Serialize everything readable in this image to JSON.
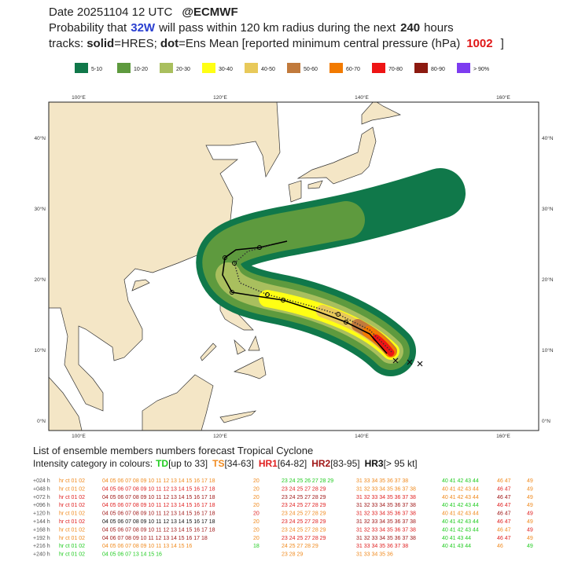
{
  "header": {
    "date": "Date 20251104 12 UTC",
    "source": "@ECMWF",
    "line2": [
      "Probability that",
      "32W",
      "will pass within 120 km radius during the next",
      "240",
      "hours"
    ],
    "line3": [
      "tracks:",
      "solid",
      "=HRES;",
      "dot",
      "=Ens Mean [reported minimum central pressure (hPa)",
      "1002",
      "]"
    ]
  },
  "legend": [
    {
      "label": "5-10",
      "color": "#10784a"
    },
    {
      "label": "10-20",
      "color": "#5e9a3e"
    },
    {
      "label": "20-30",
      "color": "#a9bf5e"
    },
    {
      "label": "30-40",
      "color": "#ffff14"
    },
    {
      "label": "40-50",
      "color": "#e8c95a"
    },
    {
      "label": "50-60",
      "color": "#c17a3c"
    },
    {
      "label": "60-70",
      "color": "#f27a00"
    },
    {
      "label": "70-80",
      "color": "#ee1414"
    },
    {
      "label": "80-90",
      "color": "#8c1a10"
    },
    {
      "label": "> 90%",
      "color": "#7d3cf0"
    }
  ],
  "map": {
    "lon_labels": [
      "100°E",
      "120°E",
      "140°E",
      "160°E"
    ],
    "lat_labels": [
      "40°N",
      "30°N",
      "20°N",
      "10°N",
      "0°N"
    ]
  },
  "footer": {
    "list_title": "List of ensemble members numbers forecast Tropical Cyclone",
    "intensity_label": "Intensity category in colours:",
    "categories": [
      {
        "name": "TD",
        "range": "[up to 33]",
        "color": "#22cc22"
      },
      {
        "name": "TS",
        "range": "[34-63]",
        "color": "#f08a1e"
      },
      {
        "name": "HR1",
        "range": "[64-82]",
        "color": "#e02020"
      },
      {
        "name": "HR2",
        "range": "[83-95]",
        "color": "#a01818"
      },
      {
        "name": "HR3",
        "range": "[> 95 kt]",
        "color": "#111111"
      }
    ]
  },
  "table": {
    "rows": [
      {
        "label": "+024 h",
        "cells": [
          "hr ct 01 02",
          "04 05 06 07 08 09 10 11 12 13 14 15 16 17 18",
          "20",
          "23 24 25 26 27 28 29",
          "31 33 34 35 36 37 38",
          "40 41 42 43 44",
          "46 47",
          "49"
        ],
        "colors": [
          "#f08a1e",
          "#f08a1e",
          "#f08a1e",
          "#22cc22",
          "#f08a1e",
          "#22cc22",
          "#f08a1e",
          "#f08a1e"
        ]
      },
      {
        "label": "+048 h",
        "cells": [
          "hr ct 01 02",
          "04 05 06 07 08 09 10 11 12 13 14 15 16 17 18",
          "20",
          "23 24 25 27 28 29",
          "31 32 33 34 35 36 37 38",
          "40 41 42 43 44",
          "46 47",
          "49"
        ],
        "colors": [
          "#f08a1e",
          "#e02020",
          "#f08a1e",
          "#e02020",
          "#f08a1e",
          "#f08a1e",
          "#e02020",
          "#f08a1e"
        ]
      },
      {
        "label": "+072 h",
        "cells": [
          "hr ct 01 02",
          "04 05 06 07 08 09 10 11 12 13 14 15 16 17 18",
          "20",
          "23 24 25 27 28 29",
          "31 32 33 34 35 36 37 38",
          "40 41 42 43 44",
          "46 47",
          "49"
        ],
        "colors": [
          "#e02020",
          "#a01818",
          "#f08a1e",
          "#a01818",
          "#e02020",
          "#f08a1e",
          "#a01818",
          "#f08a1e"
        ]
      },
      {
        "label": "+096 h",
        "cells": [
          "hr ct 01 02",
          "04 05 06 07 08 09 10 11 12 13 14 15 16 17 18",
          "20",
          "23 24 25 27 28 29",
          "31 32 33 34 35 36 37 38",
          "40 41 42 43 44",
          "46 47",
          "49"
        ],
        "colors": [
          "#e02020",
          "#e02020",
          "#f08a1e",
          "#e02020",
          "#a01818",
          "#22cc22",
          "#e02020",
          "#f08a1e"
        ]
      },
      {
        "label": "+120 h",
        "cells": [
          "hr ct 01 02",
          "04 05 06 07 08 09 10 11 12 13 14 15 16 17 18",
          "20",
          "23 24 25 27 28 29",
          "31 32 33 34 35 36 37 38",
          "40 41 42 43 44",
          "46 47",
          "49"
        ],
        "colors": [
          "#f08a1e",
          "#a01818",
          "#e02020",
          "#f08a1e",
          "#e02020",
          "#f08a1e",
          "#a01818",
          "#e02020"
        ]
      },
      {
        "label": "+144 h",
        "cells": [
          "hr ct 01 02",
          "04 05 06 07 08 09 10 11 12 13 14 15 16 17 18",
          "20",
          "23 24 25 27 28 29",
          "31 32 33 34 35 36 37 38",
          "40 41 42 43 44",
          "46 47",
          "49"
        ],
        "colors": [
          "#e02020",
          "#111111",
          "#f08a1e",
          "#e02020",
          "#a01818",
          "#22cc22",
          "#e02020",
          "#f08a1e"
        ]
      },
      {
        "label": "+168 h",
        "cells": [
          "hr ct 01 02",
          "04 05 06 07 08 09 10 11 12 13 14 15 16 17 18",
          "20",
          "23 24 25 27 28 29",
          "31 32 33 34 35 36 37 38",
          "40 41 42 43 44",
          "46 47",
          "49"
        ],
        "colors": [
          "#f08a1e",
          "#a01818",
          "#f08a1e",
          "#f08a1e",
          "#e02020",
          "#22cc22",
          "#f08a1e",
          "#e02020"
        ]
      },
      {
        "label": "+192 h",
        "cells": [
          "hr ct 01 02",
          "04 06 07 08 09 10 11 12 13 14 15 16 17 18",
          "20",
          "23 24 25 27 28 29",
          "31 32 33 34 35 36 37 38",
          "40 41 43 44",
          "46 47",
          "49"
        ],
        "colors": [
          "#f08a1e",
          "#a01818",
          "#f08a1e",
          "#e02020",
          "#a01818",
          "#22cc22",
          "#e02020",
          "#f08a1e"
        ]
      },
      {
        "label": "+216 h",
        "cells": [
          "hr ct 01 02",
          "04 05 06 07 08 09 10 11 13 14 15 16",
          "18",
          "24 25 27 28 29",
          "31 33 34 35 36 37 38",
          "40 41 43 44",
          "46",
          "49"
        ],
        "colors": [
          "#22cc22",
          "#f08a1e",
          "#22cc22",
          "#f08a1e",
          "#e02020",
          "#22cc22",
          "#f08a1e",
          "#22cc22"
        ]
      },
      {
        "label": "+240 h",
        "cells": [
          "hr ct 01 02",
          "04 05 06 07 13 14 15 16",
          "",
          "23 28 29",
          "31 33 34 35 36",
          "",
          "",
          ""
        ],
        "colors": [
          "#22cc22",
          "#22cc22",
          "#22cc22",
          "#f08a1e",
          "#f08a1e",
          "#22cc22",
          "#22cc22",
          "#22cc22"
        ]
      }
    ]
  }
}
